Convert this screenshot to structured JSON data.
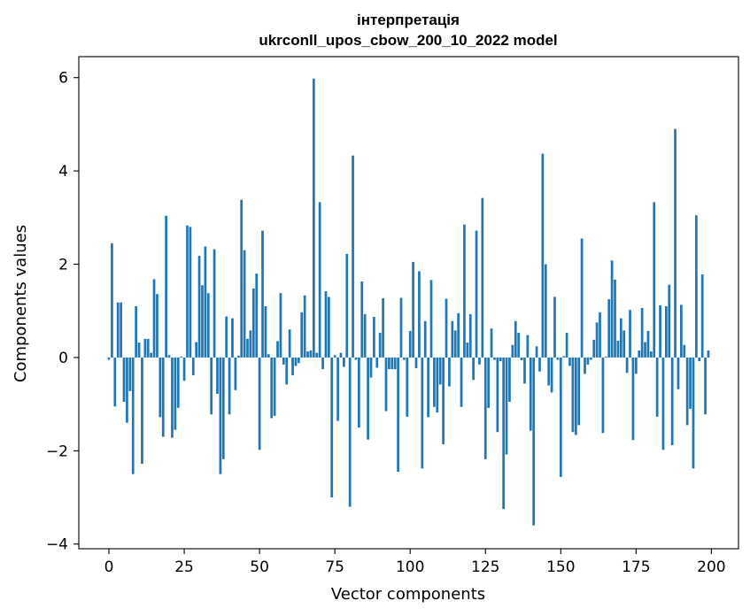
{
  "chart_data": {
    "type": "bar",
    "title_lines": [
      "інтерпретація",
      "ukrconll_upos_cbow_200_10_2022 model"
    ],
    "xlabel": "Vector components",
    "ylabel": "Components values",
    "xlim": [
      -10,
      209
    ],
    "ylim": [
      -4.1,
      6.45
    ],
    "xticks": [
      0,
      25,
      50,
      75,
      100,
      125,
      150,
      175,
      200
    ],
    "yticks": [
      -4,
      -2,
      0,
      2,
      4,
      6
    ],
    "ytick_labels": [
      "−4",
      "−2",
      "0",
      "2",
      "4",
      "6"
    ],
    "bar_color": "#1f77b4",
    "grid": false,
    "x": [
      0,
      1,
      2,
      3,
      4,
      5,
      6,
      7,
      8,
      9,
      10,
      11,
      12,
      13,
      14,
      15,
      16,
      17,
      18,
      19,
      20,
      21,
      22,
      23,
      24,
      25,
      26,
      27,
      28,
      29,
      30,
      31,
      32,
      33,
      34,
      35,
      36,
      37,
      38,
      39,
      40,
      41,
      42,
      43,
      44,
      45,
      46,
      47,
      48,
      49,
      50,
      51,
      52,
      53,
      54,
      55,
      56,
      57,
      58,
      59,
      60,
      61,
      62,
      63,
      64,
      65,
      66,
      67,
      68,
      69,
      70,
      71,
      72,
      73,
      74,
      75,
      76,
      77,
      78,
      79,
      80,
      81,
      82,
      83,
      84,
      85,
      86,
      87,
      88,
      89,
      90,
      91,
      92,
      93,
      94,
      95,
      96,
      97,
      98,
      99,
      100,
      101,
      102,
      103,
      104,
      105,
      106,
      107,
      108,
      109,
      110,
      111,
      112,
      113,
      114,
      115,
      116,
      117,
      118,
      119,
      120,
      121,
      122,
      123,
      124,
      125,
      126,
      127,
      128,
      129,
      130,
      131,
      132,
      133,
      134,
      135,
      136,
      137,
      138,
      139,
      140,
      141,
      142,
      143,
      144,
      145,
      146,
      147,
      148,
      149,
      150,
      151,
      152,
      153,
      154,
      155,
      156,
      157,
      158,
      159,
      160,
      161,
      162,
      163,
      164,
      165,
      166,
      167,
      168,
      169,
      170,
      171,
      172,
      173,
      174,
      175,
      176,
      177,
      178,
      179,
      180,
      181,
      182,
      183,
      184,
      185,
      186,
      187,
      188,
      189,
      190,
      191,
      192,
      193,
      194,
      195,
      196,
      197,
      198,
      199
    ],
    "values": [
      -0.05,
      2.45,
      -1.05,
      1.18,
      1.18,
      -0.95,
      -1.4,
      -0.72,
      -2.5,
      1.1,
      0.32,
      -2.28,
      0.4,
      0.4,
      0.1,
      1.68,
      1.36,
      -1.28,
      -1.7,
      3.04,
      0.05,
      -1.72,
      -1.55,
      -1.08,
      0.02,
      -0.5,
      2.83,
      2.8,
      -0.38,
      0.33,
      2.18,
      1.55,
      2.38,
      1.38,
      -1.22,
      2.32,
      -0.78,
      -2.5,
      -2.18,
      0.88,
      -1.22,
      0.84,
      -0.7,
      0.04,
      3.38,
      2.3,
      0.4,
      0.58,
      1.48,
      1.8,
      -1.98,
      2.72,
      1.1,
      0.07,
      -1.3,
      -1.25,
      0.35,
      1.38,
      -0.15,
      -0.58,
      0.6,
      -0.38,
      -0.18,
      -0.12,
      0.97,
      1.33,
      0.13,
      0.15,
      5.98,
      0.1,
      3.33,
      -0.25,
      1.42,
      1.3,
      -3.0,
      0.05,
      -1.36,
      0.1,
      -0.2,
      2.22,
      -3.2,
      4.33,
      -0.05,
      -1.5,
      1.63,
      0.93,
      -1.76,
      -0.43,
      0.87,
      -0.22,
      0.53,
      1.27,
      -1.15,
      -0.25,
      -0.25,
      -0.25,
      -2.45,
      1.28,
      -0.05,
      -1.27,
      0.57,
      2.05,
      -0.23,
      1.85,
      -2.38,
      0.78,
      -1.28,
      1.66,
      -1.06,
      -1.18,
      -0.58,
      -1.86,
      1.26,
      -0.62,
      0.78,
      0.58,
      0.95,
      -1.06,
      2.85,
      0.32,
      0.93,
      -0.48,
      2.72,
      -0.15,
      3.42,
      -2.18,
      -1.08,
      0.62,
      -0.05,
      -1.6,
      -0.08,
      -3.25,
      -2.08,
      -0.95,
      0.27,
      0.78,
      0.53,
      -0.06,
      -0.56,
      0.48,
      -1.57,
      -3.6,
      0.24,
      -0.3,
      4.37,
      2.0,
      -0.6,
      -0.75,
      1.3,
      -0.05,
      -2.56,
      0.03,
      0.53,
      -0.18,
      -1.6,
      -1.66,
      -1.45,
      2.55,
      -0.35,
      -0.15,
      -0.05,
      0.38,
      0.75,
      0.97,
      -1.62,
      0.02,
      1.25,
      2.08,
      1.67,
      0.36,
      0.84,
      0.58,
      -0.33,
      1.02,
      -1.77,
      -0.35,
      0.15,
      1.06,
      0.33,
      0.57,
      0.13,
      3.33,
      -1.27,
      1.12,
      -1.98,
      1.1,
      1.56,
      -1.88,
      4.9,
      -0.68,
      1.13,
      0.27,
      -1.45,
      -1.1,
      -2.38,
      3.05,
      -0.08,
      1.78,
      -1.22,
      0.15
    ]
  }
}
